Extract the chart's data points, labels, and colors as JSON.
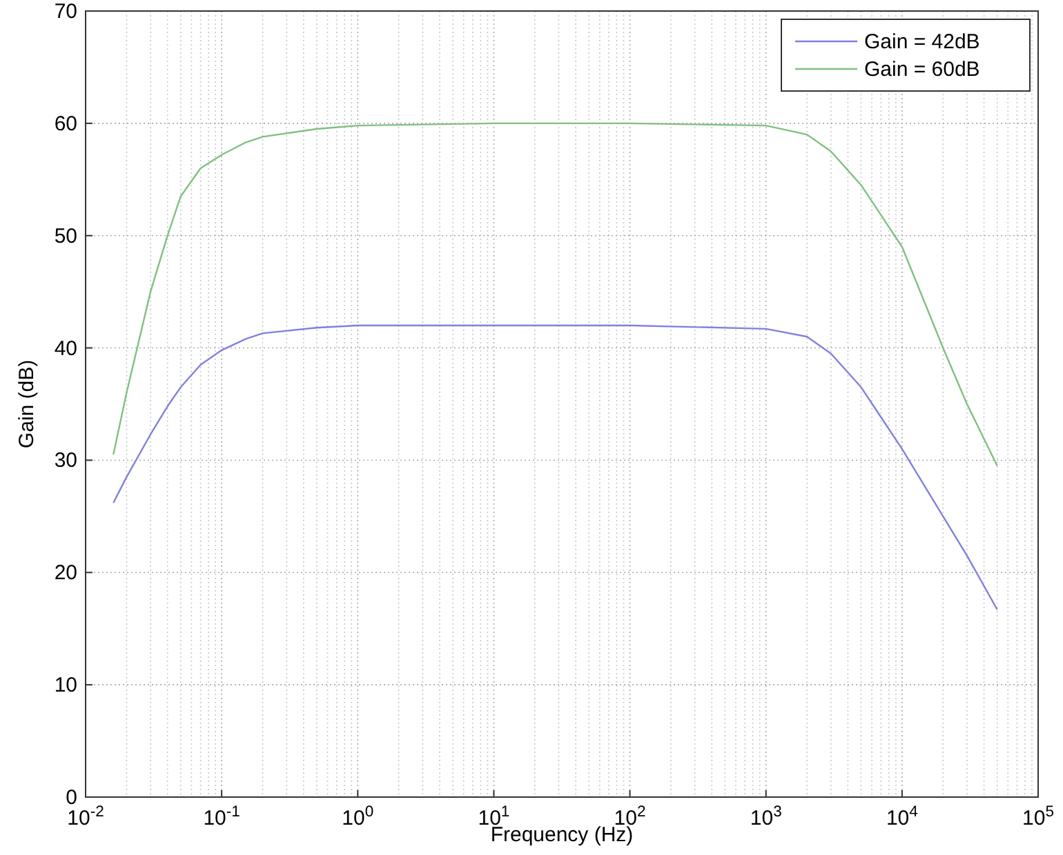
{
  "chart_data": {
    "type": "line",
    "xlabel": "Frequency (Hz)",
    "ylabel": "Gain (dB)",
    "log": "x",
    "xlim": [
      0.01,
      100000
    ],
    "ylim": [
      0,
      70
    ],
    "xticks": [
      {
        "value": 0.01,
        "label": "10$^{-2}$"
      },
      {
        "value": 0.1,
        "label": "10$^{-1}$"
      },
      {
        "value": 1,
        "label": "10$^{0}$"
      },
      {
        "value": 10,
        "label": "10$^{1}$"
      },
      {
        "value": 100,
        "label": "10$^{2}$"
      },
      {
        "value": 1000,
        "label": "10$^{3}$"
      },
      {
        "value": 10000,
        "label": "10$^{4}$"
      },
      {
        "value": 100000,
        "label": "10$^{5}$"
      }
    ],
    "yticks": [
      0,
      10,
      20,
      30,
      40,
      50,
      60,
      70
    ],
    "grid": true,
    "legend": "top right",
    "x": [
      0.016,
      0.02,
      0.03,
      0.04,
      0.05,
      0.07,
      0.1,
      0.15,
      0.2,
      0.5,
      1,
      10,
      100,
      1000,
      2000,
      3000,
      5000,
      10000,
      20000,
      30000,
      50000
    ],
    "series": [
      {
        "name": "Gain = 42dB",
        "color": "#8080e0",
        "values": [
          26.2,
          28.5,
          32.3,
          34.8,
          36.5,
          38.5,
          39.8,
          40.8,
          41.3,
          41.8,
          42,
          42,
          42,
          41.7,
          41,
          39.5,
          36.5,
          31,
          25,
          21.5,
          16.7
        ]
      },
      {
        "name": "Gain = 60dB",
        "color": "#80c080",
        "values": [
          30.5,
          36,
          45,
          50,
          53.5,
          56,
          57.2,
          58.3,
          58.8,
          59.5,
          59.8,
          60,
          60,
          59.8,
          59,
          57.5,
          54.5,
          49,
          40,
          35,
          29.5
        ]
      }
    ]
  }
}
